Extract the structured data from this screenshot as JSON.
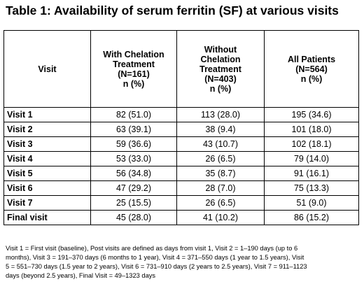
{
  "title": "Table 1: Availability of serum ferritin (SF) at various visits",
  "headers": {
    "visit": "Visit",
    "with": [
      "With Chelation",
      "Treatment",
      "(N=161)",
      "n (%)"
    ],
    "without": [
      "Without",
      "Chelation",
      "Treatment",
      "(N=403)",
      "n (%)"
    ],
    "all": [
      "All Patients",
      "(N=564)",
      "n (%)"
    ]
  },
  "rows": [
    {
      "visit": "Visit 1",
      "with": "82 (51.0)",
      "without": "113 (28.0)",
      "all": "195 (34.6)"
    },
    {
      "visit": "Visit 2",
      "with": "63 (39.1)",
      "without": "38 (9.4)",
      "all": "101 (18.0)"
    },
    {
      "visit": "Visit 3",
      "with": "59 (36.6)",
      "without": "43 (10.7)",
      "all": "102 (18.1)"
    },
    {
      "visit": "Visit 4",
      "with": "53 (33.0)",
      "without": "26 (6.5)",
      "all": "79 (14.0)"
    },
    {
      "visit": "Visit 5",
      "with": "56 (34.8)",
      "without": "35 (8.7)",
      "all": "91 (16.1)"
    },
    {
      "visit": "Visit 6",
      "with": "47 (29.2)",
      "without": "28 (7.0)",
      "all": "75 (13.3)"
    },
    {
      "visit": "Visit 7",
      "with": "25 (15.5)",
      "without": "26 (6.5)",
      "all": "51 (9.0)"
    },
    {
      "visit": "Final visit",
      "with": "45 (28.0)",
      "without": "41 (10.2)",
      "all": "86 (15.2)"
    }
  ],
  "footnote": [
    "Visit 1 = First visit (baseline), Post visits are defined as days from visit 1, Visit 2 = 1–190 days (up to 6",
    "months), Visit 3 = 191–370 days (6 months to 1 year), Visit 4 = 371–550 days (1 year to 1.5 years), Visit",
    "5 = 551–730 days (1.5 year to 2 years), Visit 6 = 731–910 days (2 years to 2.5 years), Visit 7 = 911–1123",
    "days (beyond 2.5 years), Final Visit = 49–1323 days"
  ]
}
